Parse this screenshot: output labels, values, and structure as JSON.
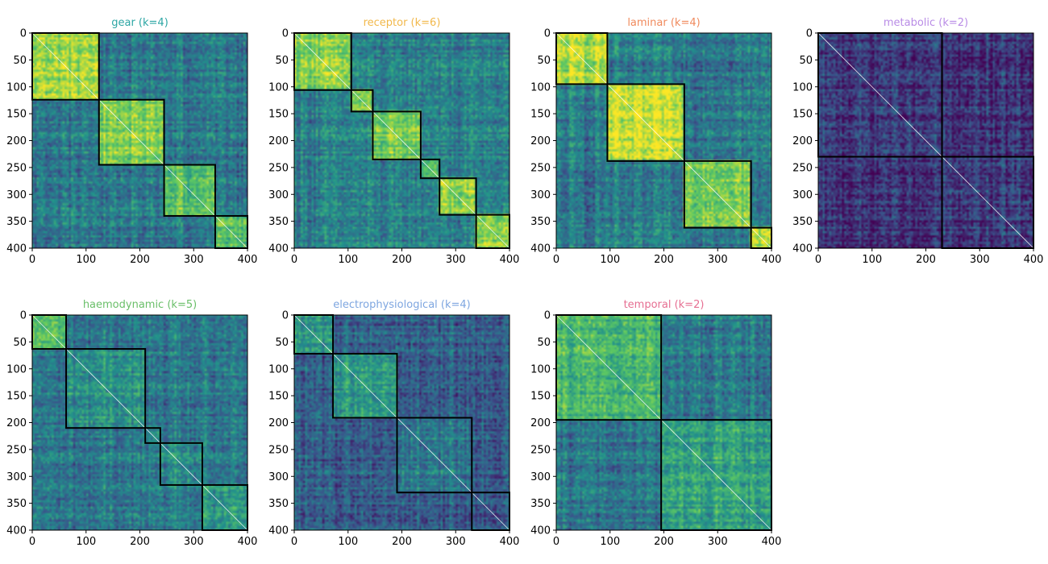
{
  "chart_data": [
    {
      "type": "heatmap",
      "title": "gear (k=4)",
      "title_color": "#2ca6a4",
      "boundaries": [
        0,
        124,
        245,
        340,
        400
      ],
      "xlim": [
        0,
        400
      ],
      "ylim": [
        400,
        0
      ],
      "xticks": [
        "0",
        "100",
        "200",
        "300",
        "400"
      ],
      "yticks": [
        "0",
        "50",
        "100",
        "150",
        "200",
        "250",
        "300",
        "350",
        "400"
      ],
      "block_strength": [
        0.85,
        0.8,
        0.7,
        0.7
      ],
      "off_level": 0.4
    },
    {
      "type": "heatmap",
      "title": "receptor (k=6)",
      "title_color": "#f2b84b",
      "boundaries": [
        0,
        106,
        146,
        235,
        270,
        338,
        400
      ],
      "xlim": [
        0,
        400
      ],
      "ylim": [
        400,
        0
      ],
      "xticks": [
        "0",
        "100",
        "200",
        "300",
        "400"
      ],
      "yticks": [
        "0",
        "50",
        "100",
        "150",
        "200",
        "250",
        "300",
        "350",
        "400"
      ],
      "block_strength": [
        0.8,
        0.75,
        0.75,
        0.7,
        0.8,
        0.8
      ],
      "off_level": 0.42
    },
    {
      "type": "heatmap",
      "title": "laminar (k=4)",
      "title_color": "#f08a5d",
      "boundaries": [
        0,
        95,
        238,
        362,
        400
      ],
      "xlim": [
        0,
        400
      ],
      "ylim": [
        400,
        0
      ],
      "xticks": [
        "0",
        "100",
        "200",
        "300",
        "400"
      ],
      "yticks": [
        "0",
        "50",
        "100",
        "150",
        "200",
        "250",
        "300",
        "350",
        "400"
      ],
      "block_strength": [
        0.88,
        0.88,
        0.82,
        0.88
      ],
      "off_level": 0.4
    },
    {
      "type": "heatmap",
      "title": "metabolic (k=2)",
      "title_color": "#b98ce6",
      "boundaries": [
        0,
        230,
        400
      ],
      "xlim": [
        0,
        400
      ],
      "ylim": [
        400,
        0
      ],
      "xticks": [
        "0",
        "100",
        "200",
        "300",
        "400"
      ],
      "yticks": [
        "0",
        "50",
        "100",
        "150",
        "200",
        "250",
        "300",
        "350",
        "400"
      ],
      "block_strength": [
        0.16,
        0.16
      ],
      "off_level": 0.13
    },
    {
      "type": "heatmap",
      "title": "haemodynamic (k=5)",
      "title_color": "#6abf69",
      "boundaries": [
        0,
        63,
        210,
        238,
        316,
        400
      ],
      "xlim": [
        0,
        400
      ],
      "ylim": [
        400,
        0
      ],
      "xticks": [
        "0",
        "100",
        "200",
        "300",
        "400"
      ],
      "yticks": [
        "0",
        "50",
        "100",
        "150",
        "200",
        "250",
        "300",
        "350",
        "400"
      ],
      "block_strength": [
        0.7,
        0.5,
        0.45,
        0.45,
        0.5
      ],
      "off_level": 0.38
    },
    {
      "type": "heatmap",
      "title": "electrophysiological (k=4)",
      "title_color": "#7ea6e0",
      "boundaries": [
        0,
        72,
        191,
        330,
        400
      ],
      "xlim": [
        0,
        400
      ],
      "ylim": [
        400,
        0
      ],
      "xticks": [
        "0",
        "100",
        "200",
        "300",
        "400"
      ],
      "yticks": [
        "0",
        "50",
        "100",
        "150",
        "200",
        "250",
        "300",
        "350",
        "400"
      ],
      "block_strength": [
        0.5,
        0.55,
        0.4,
        0.3
      ],
      "off_level": 0.3
    },
    {
      "type": "heatmap",
      "title": "temporal (k=2)",
      "title_color": "#e66f92",
      "boundaries": [
        0,
        195,
        400
      ],
      "xlim": [
        0,
        400
      ],
      "ylim": [
        400,
        0
      ],
      "xticks": [
        "0",
        "100",
        "200",
        "300",
        "400"
      ],
      "yticks": [
        "0",
        "50",
        "100",
        "150",
        "200",
        "250",
        "300",
        "350",
        "400"
      ],
      "block_strength": [
        0.65,
        0.55
      ],
      "off_level": 0.38
    }
  ]
}
